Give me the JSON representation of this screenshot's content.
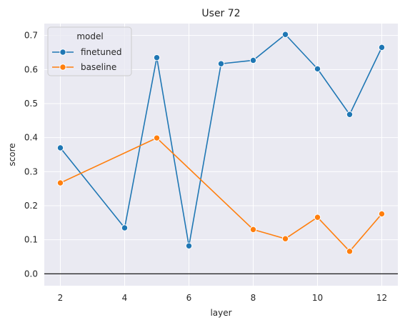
{
  "chart_data": {
    "type": "line",
    "title": "User 72",
    "xlabel": "layer",
    "ylabel": "score",
    "xlim": [
      1.5,
      12.5
    ],
    "ylim": [
      -0.035,
      0.735
    ],
    "xticks": [
      2,
      4,
      6,
      8,
      10,
      12
    ],
    "yticks": [
      0.0,
      0.1,
      0.2,
      0.3,
      0.4,
      0.5,
      0.6,
      0.7
    ],
    "ytick_labels": [
      "0.0",
      "0.1",
      "0.2",
      "0.3",
      "0.4",
      "0.5",
      "0.6",
      "0.7"
    ],
    "grid": true,
    "zero_line": 0.0,
    "legend": {
      "title": "model",
      "placement": "top-left"
    },
    "series": [
      {
        "name": "finetuned",
        "color": "#1f77b4",
        "x": [
          2,
          4,
          5,
          6,
          7,
          8,
          9,
          10,
          11,
          12
        ],
        "y": [
          0.37,
          0.135,
          0.635,
          0.082,
          0.617,
          0.627,
          0.703,
          0.602,
          0.468,
          0.665
        ]
      },
      {
        "name": "baseline",
        "color": "#ff7f0e",
        "x": [
          2,
          5,
          8,
          9,
          10,
          11,
          12
        ],
        "y": [
          0.267,
          0.399,
          0.13,
          0.103,
          0.166,
          0.066,
          0.176
        ]
      }
    ]
  }
}
